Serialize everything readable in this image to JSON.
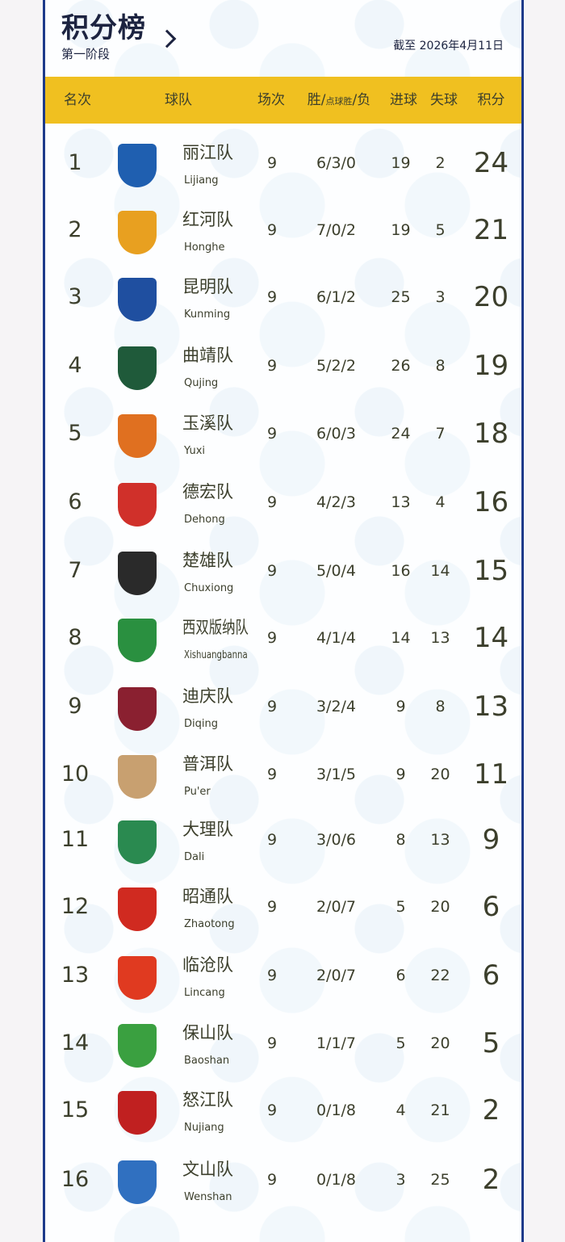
{
  "header": {
    "title": "积分榜",
    "subtitle": "第一阶段",
    "date": "截至 2026年4月11日"
  },
  "columns": {
    "rank": "名次",
    "team": "球队",
    "played": "场次",
    "record_a": "胜/",
    "record_b": "点球胜",
    "record_c": "/负",
    "gf": "进球",
    "ga": "失球",
    "pts": "积分"
  },
  "rows": [
    {
      "rank": "1",
      "cn": "丽江队",
      "en": "Lijiang",
      "p": "9",
      "rec": "6/3/0",
      "gf": "19",
      "ga": "2",
      "pts": "24",
      "color": "#1f5fb0"
    },
    {
      "rank": "2",
      "cn": "红河队",
      "en": "Honghe",
      "p": "9",
      "rec": "7/0/2",
      "gf": "19",
      "ga": "5",
      "pts": "21",
      "color": "#e8a020"
    },
    {
      "rank": "3",
      "cn": "昆明队",
      "en": "Kunming",
      "p": "9",
      "rec": "6/1/2",
      "gf": "25",
      "ga": "3",
      "pts": "20",
      "color": "#1f4fa0"
    },
    {
      "rank": "4",
      "cn": "曲靖队",
      "en": "Qujing",
      "p": "9",
      "rec": "5/2/2",
      "gf": "26",
      "ga": "8",
      "pts": "19",
      "color": "#1f5a3a"
    },
    {
      "rank": "5",
      "cn": "玉溪队",
      "en": "Yuxi",
      "p": "9",
      "rec": "6/0/3",
      "gf": "24",
      "ga": "7",
      "pts": "18",
      "color": "#e07020"
    },
    {
      "rank": "6",
      "cn": "德宏队",
      "en": "Dehong",
      "p": "9",
      "rec": "4/2/3",
      "gf": "13",
      "ga": "4",
      "pts": "16",
      "color": "#d0302a"
    },
    {
      "rank": "7",
      "cn": "楚雄队",
      "en": "Chuxiong",
      "p": "9",
      "rec": "5/0/4",
      "gf": "16",
      "ga": "14",
      "pts": "15",
      "color": "#2a2a2a"
    },
    {
      "rank": "8",
      "cn": "西双版纳队",
      "en": "Xishuangbanna",
      "p": "9",
      "rec": "4/1/4",
      "gf": "14",
      "ga": "13",
      "pts": "14",
      "color": "#2a9040"
    },
    {
      "rank": "9",
      "cn": "迪庆队",
      "en": "Diqing",
      "p": "9",
      "rec": "3/2/4",
      "gf": "9",
      "ga": "8",
      "pts": "13",
      "color": "#8a2030"
    },
    {
      "rank": "10",
      "cn": "普洱队",
      "en": "Pu'er",
      "p": "9",
      "rec": "3/1/5",
      "gf": "9",
      "ga": "20",
      "pts": "11",
      "color": "#c8a070"
    },
    {
      "rank": "11",
      "cn": "大理队",
      "en": "Dali",
      "p": "9",
      "rec": "3/0/6",
      "gf": "8",
      "ga": "13",
      "pts": "9",
      "color": "#2a8a50"
    },
    {
      "rank": "12",
      "cn": "昭通队",
      "en": "Zhaotong",
      "p": "9",
      "rec": "2/0/7",
      "gf": "5",
      "ga": "20",
      "pts": "6",
      "color": "#d02a20"
    },
    {
      "rank": "13",
      "cn": "临沧队",
      "en": "Lincang",
      "p": "9",
      "rec": "2/0/7",
      "gf": "6",
      "ga": "22",
      "pts": "6",
      "color": "#e03a20"
    },
    {
      "rank": "14",
      "cn": "保山队",
      "en": "Baoshan",
      "p": "9",
      "rec": "1/1/7",
      "gf": "5",
      "ga": "20",
      "pts": "5",
      "color": "#3aa040"
    },
    {
      "rank": "15",
      "cn": "怒江队",
      "en": "Nujiang",
      "p": "9",
      "rec": "0/1/8",
      "gf": "4",
      "ga": "21",
      "pts": "2",
      "color": "#c02020"
    },
    {
      "rank": "16",
      "cn": "文山队",
      "en": "Wenshan",
      "p": "9",
      "rec": "0/1/8",
      "gf": "3",
      "ga": "25",
      "pts": "2",
      "color": "#3070c0"
    }
  ]
}
